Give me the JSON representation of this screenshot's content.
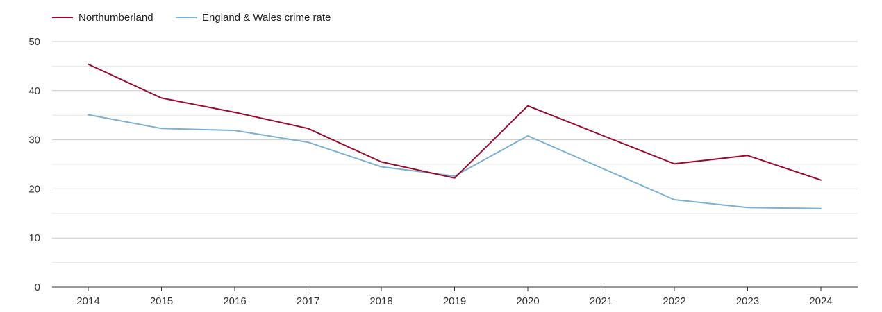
{
  "chart_data": {
    "type": "line",
    "title": "",
    "xlabel": "",
    "ylabel": "",
    "categories": [
      "2014",
      "2015",
      "2016",
      "2017",
      "2018",
      "2019",
      "2020",
      "2021",
      "2022",
      "2023",
      "2024"
    ],
    "ylim": [
      0,
      50
    ],
    "yticks": [
      0,
      10,
      20,
      30,
      40,
      50
    ],
    "grid": true,
    "legend_position": "top-left",
    "series": [
      {
        "name": "Northumberland",
        "color": "#9b0a2c",
        "values": [
          45.4,
          38.5,
          35.6,
          32.3,
          25.5,
          22.2,
          36.9,
          31.0,
          25.1,
          26.8,
          21.8
        ]
      },
      {
        "name": "England & Wales crime rate",
        "color": "#7bafd4",
        "values": [
          35.1,
          32.3,
          31.9,
          29.5,
          24.5,
          22.6,
          30.8,
          24.3,
          17.8,
          16.2,
          16.0
        ]
      }
    ]
  }
}
